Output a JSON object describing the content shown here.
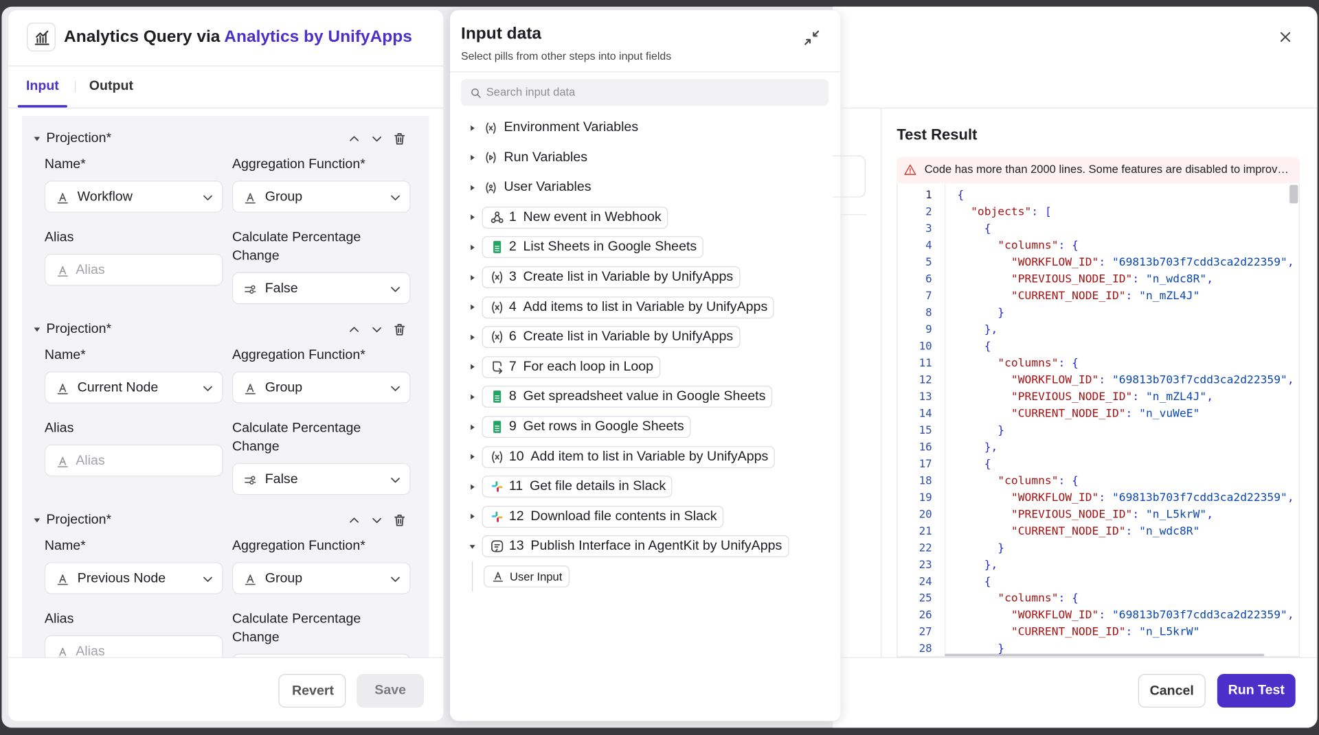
{
  "header": {
    "title_prefix": "Analytics Query via",
    "title_link": "Analytics by UnifyApps"
  },
  "tabs": [
    "Input",
    "Output"
  ],
  "projections": [
    {
      "label": "Projection*",
      "name_label": "Name*",
      "name_value": "Workflow",
      "aggregation_label": "Aggregation Function*",
      "aggregation_value": "Group",
      "alias_label": "Alias",
      "alias_placeholder": "Alias",
      "percentage_label": "Calculate Percentage Change",
      "percentage_value": "False"
    },
    {
      "label": "Projection*",
      "name_label": "Name*",
      "name_value": "Current Node",
      "aggregation_label": "Aggregation Function*",
      "aggregation_value": "Group",
      "alias_label": "Alias",
      "alias_placeholder": "Alias",
      "percentage_label": "Calculate Percentage Change",
      "percentage_value": "False"
    },
    {
      "label": "Projection*",
      "name_label": "Name*",
      "name_value": "Previous Node",
      "aggregation_label": "Aggregation Function*",
      "aggregation_value": "Group",
      "alias_label": "Alias",
      "alias_placeholder": "Alias",
      "percentage_label": "Calculate Percentage Change"
    }
  ],
  "left_buttons": [
    "Revert",
    "Save"
  ],
  "input_data": {
    "title": "Input data",
    "subtitle": "Select pills from other steps into input fields",
    "search_placeholder": "Search input data",
    "variables": [
      "Environment Variables",
      "Run Variables",
      "User Variables"
    ],
    "steps": [
      {
        "number": 1,
        "label": "New event in Webhook"
      },
      {
        "number": 2,
        "label": "List Sheets in Google Sheets"
      },
      {
        "number": 3,
        "label": "Create list in Variable by UnifyApps"
      },
      {
        "number": 4,
        "label": "Add items to list in Variable by UnifyApps"
      },
      {
        "number": 6,
        "label": "Create list in Variable by UnifyApps"
      },
      {
        "number": 7,
        "label": "For each loop in Loop"
      },
      {
        "number": 8,
        "label": "Get spreadsheet value in Google Sheets"
      },
      {
        "number": 9,
        "label": "Get rows in Google Sheets"
      },
      {
        "number": 10,
        "label": "Add item to list in Variable by UnifyApps"
      },
      {
        "number": 11,
        "label": "Get file details in Slack"
      },
      {
        "number": 12,
        "label": "Download file contents in Slack"
      },
      {
        "number": 13,
        "label": "Publish Interface in AgentKit by UnifyApps"
      }
    ],
    "children": [
      "User Input"
    ]
  },
  "test_result": {
    "title": "Test Result",
    "warning": "Code has more than 2000 lines. Some features are disabled to improv…",
    "lines": [
      {
        "number": 1,
        "code": "{"
      },
      {
        "number": 2,
        "code": "  \"objects\": ["
      },
      {
        "number": 3,
        "code": "    {"
      },
      {
        "number": 4,
        "code": "      \"columns\": {"
      },
      {
        "number": 5,
        "code": "        \"WORKFLOW_ID\": \"69813b703f7cdd3ca2d22359\","
      },
      {
        "number": 6,
        "code": "        \"PREVIOUS_NODE_ID\": \"n_wdc8R\","
      },
      {
        "number": 7,
        "code": "        \"CURRENT_NODE_ID\": \"n_mZL4J\""
      },
      {
        "number": 8,
        "code": "      }"
      },
      {
        "number": 9,
        "code": "    },"
      },
      {
        "number": 10,
        "code": "    {"
      },
      {
        "number": 11,
        "code": "      \"columns\": {"
      },
      {
        "number": 12,
        "code": "        \"WORKFLOW_ID\": \"69813b703f7cdd3ca2d22359\","
      },
      {
        "number": 13,
        "code": "        \"PREVIOUS_NODE_ID\": \"n_mZL4J\","
      },
      {
        "number": 14,
        "code": "        \"CURRENT_NODE_ID\": \"n_vuWeE\""
      },
      {
        "number": 15,
        "code": "      }"
      },
      {
        "number": 16,
        "code": "    },"
      },
      {
        "number": 17,
        "code": "    {"
      },
      {
        "number": 18,
        "code": "      \"columns\": {"
      },
      {
        "number": 19,
        "code": "        \"WORKFLOW_ID\": \"69813b703f7cdd3ca2d22359\","
      },
      {
        "number": 20,
        "code": "        \"PREVIOUS_NODE_ID\": \"n_L5krW\","
      },
      {
        "number": 21,
        "code": "        \"CURRENT_NODE_ID\": \"n_wdc8R\""
      },
      {
        "number": 22,
        "code": "      }"
      },
      {
        "number": 23,
        "code": "    },"
      },
      {
        "number": 24,
        "code": "    {"
      },
      {
        "number": 25,
        "code": "      \"columns\": {"
      },
      {
        "number": 26,
        "code": "        \"WORKFLOW_ID\": \"69813b703f7cdd3ca2d22359\","
      },
      {
        "number": 27,
        "code": "        \"CURRENT_NODE_ID\": \"n_L5krW\""
      },
      {
        "number": 28,
        "code": "      }"
      }
    ]
  },
  "right_buttons": [
    "Cancel",
    "Run Test"
  ]
}
